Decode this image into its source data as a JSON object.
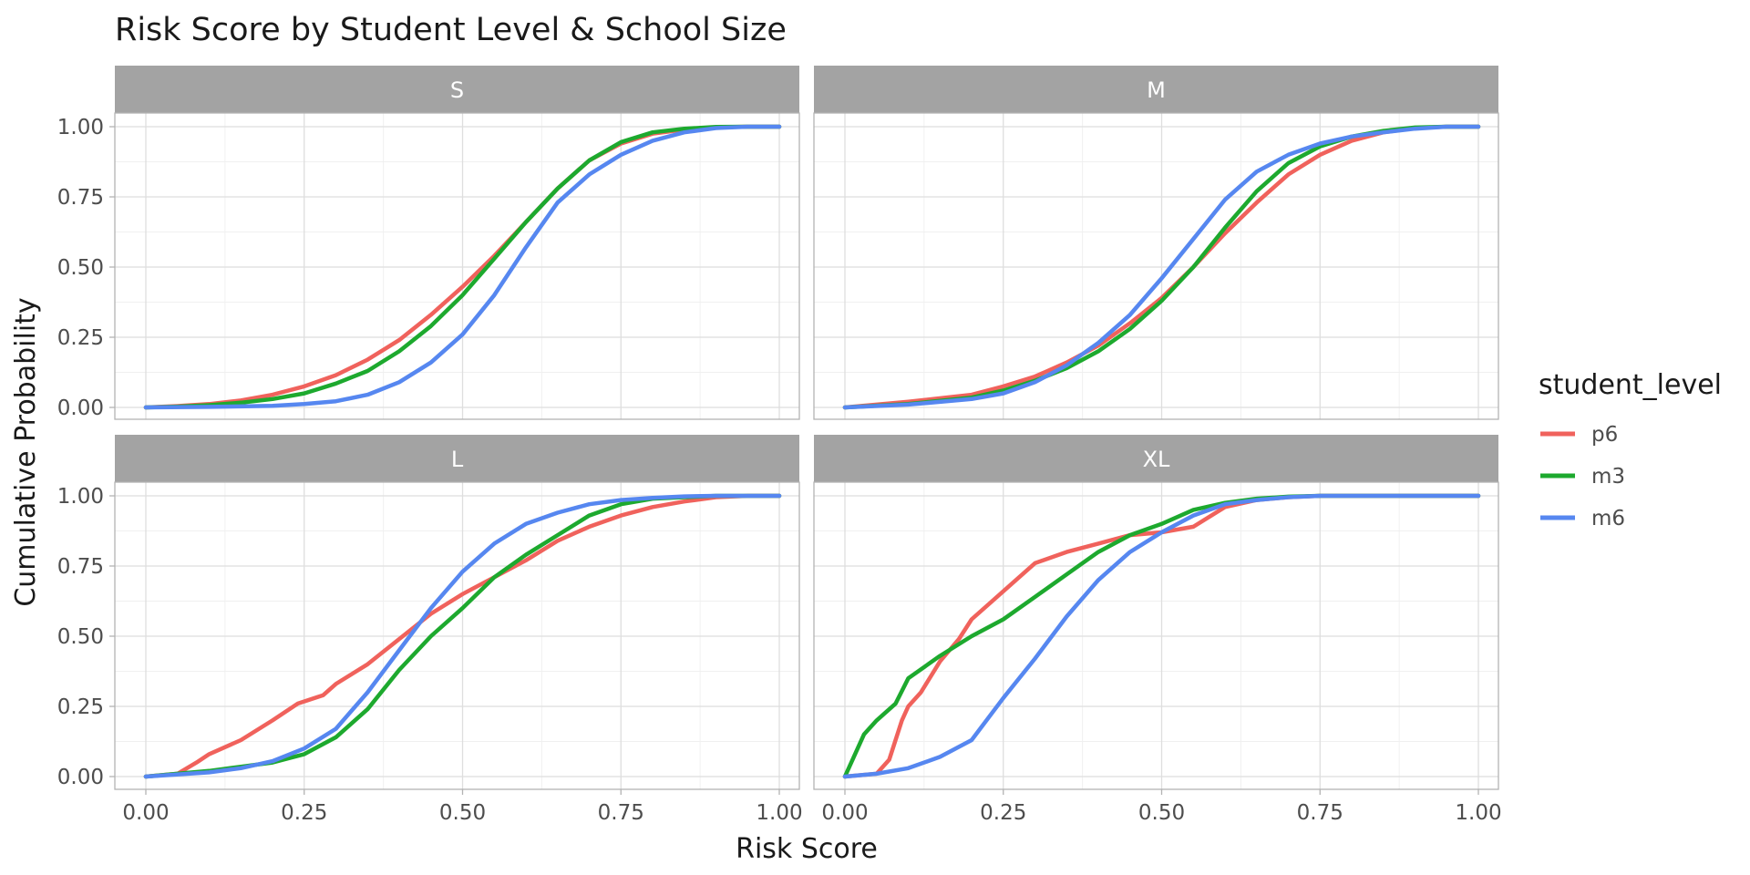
{
  "chart_data": {
    "type": "line",
    "title": "Risk Score by Student Level & School Size",
    "xlabel": "Risk Score",
    "ylabel": "Cumulative Probability",
    "xlim": [
      0,
      1
    ],
    "ylim": [
      0,
      1
    ],
    "x_ticks": [
      "0.00",
      "0.25",
      "0.50",
      "0.75",
      "1.00"
    ],
    "y_ticks": [
      "0.00",
      "0.25",
      "0.50",
      "0.75",
      "1.00"
    ],
    "grid": true,
    "legend": {
      "title": "student_level",
      "position": "right",
      "items": [
        {
          "name": "p6",
          "color": "#F0625C"
        },
        {
          "name": "m3",
          "color": "#1DA92E"
        },
        {
          "name": "m6",
          "color": "#5687F0"
        }
      ]
    },
    "facets": [
      {
        "label": "S",
        "series": [
          {
            "name": "p6",
            "x": [
              0.0,
              0.05,
              0.1,
              0.15,
              0.2,
              0.25,
              0.3,
              0.35,
              0.4,
              0.45,
              0.5,
              0.55,
              0.6,
              0.65,
              0.7,
              0.75,
              0.8,
              0.85,
              0.9,
              0.95,
              1.0
            ],
            "y": [
              0.0,
              0.005,
              0.012,
              0.025,
              0.045,
              0.075,
              0.115,
              0.17,
              0.24,
              0.33,
              0.43,
              0.54,
              0.66,
              0.78,
              0.88,
              0.94,
              0.975,
              0.99,
              0.998,
              1.0,
              1.0
            ]
          },
          {
            "name": "m3",
            "x": [
              0.0,
              0.05,
              0.1,
              0.15,
              0.2,
              0.25,
              0.3,
              0.35,
              0.4,
              0.45,
              0.5,
              0.55,
              0.6,
              0.65,
              0.7,
              0.75,
              0.8,
              0.85,
              0.9,
              0.95,
              1.0
            ],
            "y": [
              0.0,
              0.003,
              0.008,
              0.017,
              0.03,
              0.05,
              0.085,
              0.13,
              0.2,
              0.29,
              0.4,
              0.53,
              0.66,
              0.78,
              0.88,
              0.945,
              0.98,
              0.993,
              0.999,
              1.0,
              1.0
            ]
          },
          {
            "name": "m6",
            "x": [
              0.0,
              0.1,
              0.2,
              0.25,
              0.3,
              0.35,
              0.4,
              0.45,
              0.5,
              0.55,
              0.6,
              0.65,
              0.7,
              0.75,
              0.8,
              0.85,
              0.9,
              0.95,
              1.0
            ],
            "y": [
              0.0,
              0.002,
              0.006,
              0.012,
              0.022,
              0.045,
              0.09,
              0.16,
              0.26,
              0.4,
              0.57,
              0.73,
              0.83,
              0.9,
              0.95,
              0.98,
              0.995,
              1.0,
              1.0
            ]
          }
        ]
      },
      {
        "label": "M",
        "series": [
          {
            "name": "p6",
            "x": [
              0.0,
              0.1,
              0.2,
              0.25,
              0.3,
              0.35,
              0.4,
              0.45,
              0.5,
              0.55,
              0.6,
              0.65,
              0.7,
              0.75,
              0.8,
              0.85,
              0.9,
              0.95,
              1.0
            ],
            "y": [
              0.0,
              0.02,
              0.045,
              0.075,
              0.11,
              0.16,
              0.22,
              0.3,
              0.39,
              0.5,
              0.62,
              0.73,
              0.83,
              0.9,
              0.95,
              0.98,
              0.995,
              1.0,
              1.0
            ]
          },
          {
            "name": "m3",
            "x": [
              0.0,
              0.1,
              0.2,
              0.25,
              0.3,
              0.35,
              0.4,
              0.45,
              0.5,
              0.55,
              0.6,
              0.65,
              0.7,
              0.75,
              0.8,
              0.85,
              0.9,
              0.95,
              1.0
            ],
            "y": [
              0.0,
              0.012,
              0.035,
              0.06,
              0.095,
              0.14,
              0.2,
              0.28,
              0.38,
              0.5,
              0.64,
              0.77,
              0.87,
              0.93,
              0.965,
              0.985,
              0.997,
              1.0,
              1.0
            ]
          },
          {
            "name": "m6",
            "x": [
              0.0,
              0.1,
              0.2,
              0.25,
              0.3,
              0.35,
              0.4,
              0.45,
              0.5,
              0.55,
              0.6,
              0.65,
              0.7,
              0.75,
              0.8,
              0.85,
              0.9,
              0.95,
              1.0
            ],
            "y": [
              0.0,
              0.01,
              0.03,
              0.05,
              0.09,
              0.15,
              0.23,
              0.33,
              0.46,
              0.6,
              0.74,
              0.84,
              0.9,
              0.94,
              0.965,
              0.98,
              0.993,
              1.0,
              1.0
            ]
          }
        ]
      },
      {
        "label": "L",
        "series": [
          {
            "name": "p6",
            "x": [
              0.0,
              0.05,
              0.08,
              0.1,
              0.15,
              0.2,
              0.24,
              0.28,
              0.3,
              0.35,
              0.4,
              0.45,
              0.5,
              0.55,
              0.6,
              0.65,
              0.7,
              0.75,
              0.8,
              0.85,
              0.9,
              0.95,
              1.0
            ],
            "y": [
              0.0,
              0.01,
              0.05,
              0.08,
              0.13,
              0.2,
              0.26,
              0.29,
              0.33,
              0.4,
              0.49,
              0.58,
              0.65,
              0.71,
              0.77,
              0.84,
              0.89,
              0.93,
              0.96,
              0.98,
              0.995,
              1.0,
              1.0
            ]
          },
          {
            "name": "m3",
            "x": [
              0.0,
              0.1,
              0.15,
              0.2,
              0.25,
              0.3,
              0.35,
              0.4,
              0.45,
              0.5,
              0.55,
              0.6,
              0.65,
              0.7,
              0.75,
              0.8,
              0.85,
              0.9,
              1.0
            ],
            "y": [
              0.0,
              0.02,
              0.035,
              0.05,
              0.08,
              0.14,
              0.24,
              0.38,
              0.5,
              0.6,
              0.71,
              0.79,
              0.86,
              0.93,
              0.97,
              0.99,
              0.995,
              1.0,
              1.0
            ]
          },
          {
            "name": "m6",
            "x": [
              0.0,
              0.1,
              0.15,
              0.2,
              0.25,
              0.3,
              0.35,
              0.4,
              0.45,
              0.5,
              0.55,
              0.6,
              0.65,
              0.7,
              0.75,
              0.8,
              0.85,
              0.9,
              1.0
            ],
            "y": [
              0.0,
              0.015,
              0.03,
              0.055,
              0.1,
              0.17,
              0.3,
              0.45,
              0.6,
              0.73,
              0.83,
              0.9,
              0.94,
              0.97,
              0.985,
              0.993,
              0.998,
              1.0,
              1.0
            ]
          }
        ]
      },
      {
        "label": "XL",
        "series": [
          {
            "name": "p6",
            "x": [
              0.0,
              0.05,
              0.07,
              0.09,
              0.1,
              0.12,
              0.15,
              0.18,
              0.2,
              0.25,
              0.3,
              0.35,
              0.4,
              0.45,
              0.5,
              0.55,
              0.6,
              0.65,
              0.7,
              0.75,
              0.8,
              1.0
            ],
            "y": [
              0.0,
              0.01,
              0.06,
              0.2,
              0.25,
              0.3,
              0.41,
              0.49,
              0.56,
              0.66,
              0.76,
              0.8,
              0.83,
              0.86,
              0.87,
              0.89,
              0.96,
              0.985,
              0.995,
              1.0,
              1.0,
              1.0
            ]
          },
          {
            "name": "m3",
            "x": [
              0.0,
              0.01,
              0.03,
              0.05,
              0.08,
              0.1,
              0.15,
              0.2,
              0.25,
              0.3,
              0.35,
              0.4,
              0.45,
              0.5,
              0.55,
              0.6,
              0.65,
              0.7,
              0.75,
              0.8,
              1.0
            ],
            "y": [
              0.0,
              0.05,
              0.15,
              0.2,
              0.26,
              0.35,
              0.43,
              0.5,
              0.56,
              0.64,
              0.72,
              0.8,
              0.86,
              0.9,
              0.95,
              0.975,
              0.99,
              0.997,
              1.0,
              1.0,
              1.0
            ]
          },
          {
            "name": "m6",
            "x": [
              0.0,
              0.05,
              0.1,
              0.15,
              0.2,
              0.25,
              0.3,
              0.35,
              0.4,
              0.45,
              0.5,
              0.55,
              0.6,
              0.65,
              0.7,
              0.75,
              0.8,
              1.0
            ],
            "y": [
              0.0,
              0.01,
              0.03,
              0.07,
              0.13,
              0.28,
              0.42,
              0.57,
              0.7,
              0.8,
              0.87,
              0.93,
              0.97,
              0.985,
              0.995,
              1.0,
              1.0,
              1.0
            ]
          }
        ]
      }
    ]
  }
}
